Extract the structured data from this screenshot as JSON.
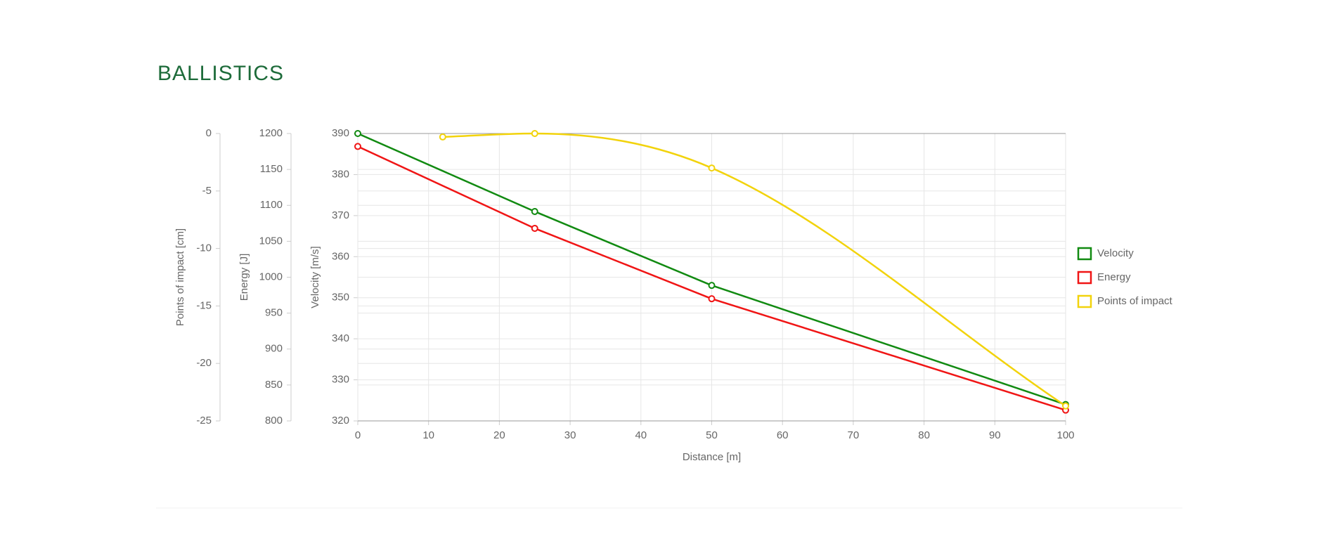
{
  "chart_data": {
    "type": "line",
    "title": "BALLISTICS",
    "xlabel": "Distance [m]",
    "xlim": [
      0,
      100
    ],
    "xticks": [
      0,
      10,
      20,
      30,
      40,
      50,
      60,
      70,
      80,
      90,
      100
    ],
    "ylabel": "Velocity [m/s]",
    "ylim": [
      320,
      390
    ],
    "yticks": [
      320,
      330,
      340,
      350,
      360,
      370,
      380,
      390
    ],
    "y2label": "Energy [J]",
    "y2lim": [
      800,
      1200
    ],
    "y2ticks": [
      800,
      850,
      900,
      950,
      1000,
      1050,
      1100,
      1150,
      1200
    ],
    "y3label": "Points of impact [cm]",
    "y3lim": [
      -25,
      0
    ],
    "y3ticks": [
      -25,
      -20,
      -15,
      -10,
      -5,
      0
    ],
    "grid": true,
    "legend": "right",
    "series": [
      {
        "name": "Velocity",
        "color": "#118a11",
        "axis": "y",
        "x": [
          0,
          25,
          50,
          100
        ],
        "values": [
          390,
          371,
          353,
          324
        ]
      },
      {
        "name": "Energy",
        "color": "#f01515",
        "axis": "y2",
        "x": [
          0,
          25,
          50,
          100
        ],
        "values": [
          1182,
          1068,
          970,
          815
        ],
        "smooth": false
      },
      {
        "name": "Points of impact",
        "color": "#f2d30c",
        "axis": "y3",
        "x": [
          12,
          25,
          50,
          100
        ],
        "values": [
          -0.3,
          0,
          -3,
          -23.7
        ],
        "smooth": true
      }
    ]
  }
}
